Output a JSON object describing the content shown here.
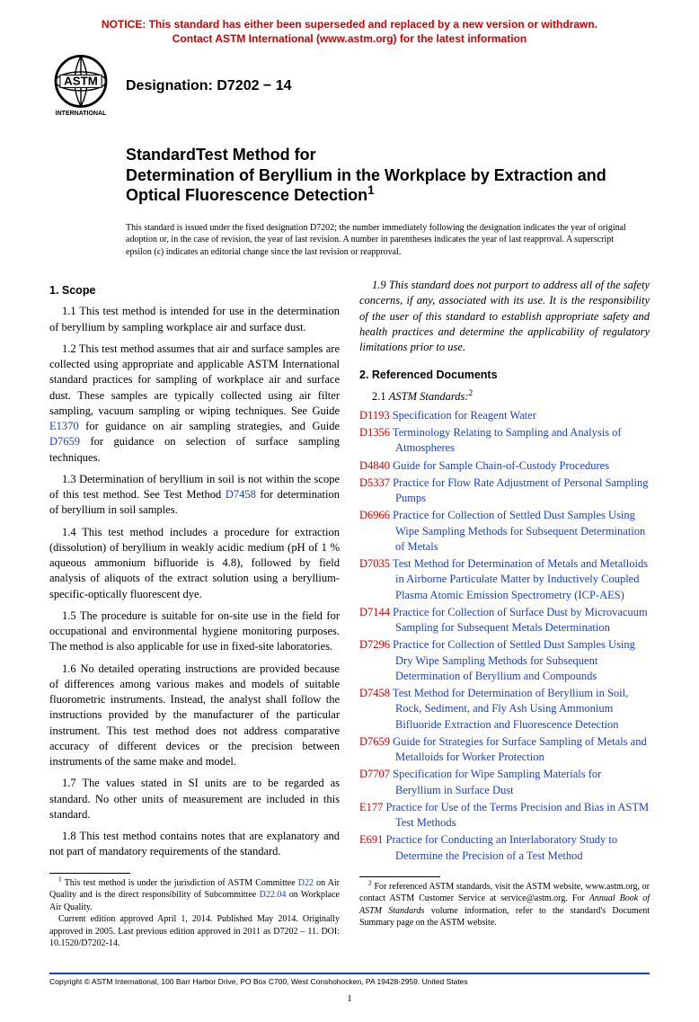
{
  "notice": {
    "line1": "NOTICE: This standard has either been superseded and replaced by a new version or withdrawn.",
    "line2": "Contact ASTM International (www.astm.org) for the latest information"
  },
  "designation": "Designation: D7202 − 14",
  "title": {
    "lead": "StandardTest Method for",
    "main": "Determination of Beryllium in the Workplace by Extraction and Optical Fluorescence Detection",
    "sup": "1"
  },
  "issuance": "This standard is issued under the fixed designation D7202; the number immediately following the designation indicates the year of original adoption or, in the case of revision, the year of last revision. A number in parentheses indicates the year of last reapproval. A superscript epsilon (ε) indicates an editorial change since the last revision or reapproval.",
  "scope": {
    "heading": "1. Scope",
    "p11": "1.1 This test method is intended for use in the determination of beryllium by sampling workplace air and surface dust.",
    "p12a": "1.2 This test method assumes that air and surface samples are collected using appropriate and applicable ASTM International standard practices for sampling of workplace air and surface dust. These samples are typically collected using air filter sampling, vacuum sampling or wiping techniques. See Guide ",
    "p12_l1": "E1370",
    "p12b": " for guidance on air sampling strategies, and Guide ",
    "p12_l2": "D7659",
    "p12c": " for guidance on selection of surface sampling techniques.",
    "p13a": "1.3 Determination of beryllium in soil is not within the scope of this test method. See Test Method ",
    "p13_l1": "D7458",
    "p13b": " for determination of beryllium in soil samples.",
    "p14": "1.4 This test method includes a procedure for extraction (dissolution) of beryllium in weakly acidic medium (pH of 1 % aqueous ammonium bifluoride is 4.8), followed by field analysis of aliquots of the extract solution using a beryllium-specific-optically fluorescent dye.",
    "p15": "1.5 The procedure is suitable for on-site use in the field for occupational and environmental hygiene monitoring purposes. The method is also applicable for use in fixed-site laboratories.",
    "p16": "1.6 No detailed operating instructions are provided because of differences among various makes and models of suitable fluorometric instruments. Instead, the analyst shall follow the instructions provided by the manufacturer of the particular instrument. This test method does not address comparative accuracy of different devices or the precision between instruments of the same make and model.",
    "p17": "1.7 The values stated in SI units are to be regarded as standard. No other units of measurement are included in this standard.",
    "p18": "1.8 This test method contains notes that are explanatory and not part of mandatory requirements of the standard.",
    "p19": "1.9 This standard does not purport to address all of the safety concerns, if any, associated with its use. It is the responsibility of the user of this standard to establish appropriate safety and health practices and determine the applicability of regulatory limitations prior to use."
  },
  "refs": {
    "heading": "2. Referenced Documents",
    "sub": "2.1 ",
    "subit": "ASTM Standards:",
    "sup": "2",
    "items": [
      {
        "c": "D1193",
        "t": "Specification for Reagent Water"
      },
      {
        "c": "D1356",
        "t": "Terminology Relating to Sampling and Analysis of Atmospheres"
      },
      {
        "c": "D4840",
        "t": "Guide for Sample Chain-of-Custody Procedures"
      },
      {
        "c": "D5337",
        "t": "Practice for Flow Rate Adjustment of Personal Sampling Pumps"
      },
      {
        "c": "D6966",
        "t": "Practice for Collection of Settled Dust Samples Using Wipe Sampling Methods for Subsequent Determination of Metals"
      },
      {
        "c": "D7035",
        "t": "Test Method for Determination of Metals and Metalloids in Airborne Particulate Matter by Inductively Coupled Plasma Atomic Emission Spectrometry (ICP-AES)"
      },
      {
        "c": "D7144",
        "t": "Practice for Collection of Surface Dust by Microvacuum Sampling for Subsequent Metals Determination"
      },
      {
        "c": "D7296",
        "t": "Practice for Collection of Settled Dust Samples Using Dry Wipe Sampling Methods for Subsequent Determination of Beryllium and Compounds"
      },
      {
        "c": "D7458",
        "t": "Test Method for Determination of Beryllium in Soil, Rock, Sediment, and Fly Ash Using Ammonium Bifluoride Extraction and Fluorescence Detection"
      },
      {
        "c": "D7659",
        "t": "Guide for Strategies for Surface Sampling of Metals and Metalloids for Worker Protection"
      },
      {
        "c": "D7707",
        "t": "Specification for Wipe Sampling Materials for Beryllium in Surface Dust"
      },
      {
        "c": "E177",
        "t": "Practice for Use of the Terms Precision and Bias in ASTM Test Methods"
      },
      {
        "c": "E691",
        "t": "Practice for Conducting an Interlaboratory Study to Determine the Precision of a Test Method"
      }
    ]
  },
  "fn1": {
    "a": " This test method is under the jurisdiction of ASTM Committee ",
    "l1": "D22",
    "b": " on Air Quality and is the direct responsibility of Subcommittee ",
    "l2": "D22.04",
    "c": " on Workplace Air Quality.",
    "d": "Current edition approved April 1, 2014. Published May 2014. Originally approved in 2005. Last previous edition approved in 2011 as D7202 – 11. DOI: 10.1520/D7202-14."
  },
  "fn2": {
    "a": " For referenced ASTM standards, visit the ASTM website, www.astm.org, or contact ASTM Customer Service at service@astm.org. For ",
    "it": "Annual Book of ASTM Standards",
    "b": " volume information, refer to the standard's Document Summary page on the ASTM website."
  },
  "copyright": "Copyright © ASTM International, 100 Barr Harbor Drive, PO Box C700, West Conshohocken, PA 19428-2959. United States",
  "pagenum": "1"
}
